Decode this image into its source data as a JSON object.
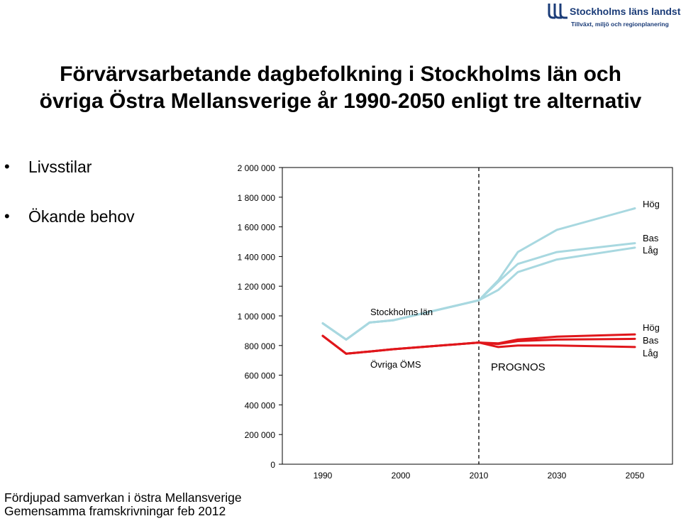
{
  "logo": {
    "name": "Stockholms läns landsting",
    "tagline": "Tillväxt, miljö och regionplanering"
  },
  "title_line1": "Förvärvsarbetande dagbefolkning i Stockholms län och",
  "title_line2": "övriga Östra Mellansverige år 1990-2050 enligt tre alternativ",
  "bullets": [
    "Livsstilar",
    "Ökande behov"
  ],
  "footer_line1": "Fördjupad samverkan i östra Mellansverige",
  "footer_line2": "Gemensamma framskrivningar feb 2012",
  "colors": {
    "stockholm": "#a8d8e0",
    "oms": "#e0161b",
    "logo": "#1b3c78"
  },
  "chart_data": {
    "type": "line",
    "ylim": [
      0,
      2000000
    ],
    "yticks": [
      0,
      200000,
      400000,
      600000,
      800000,
      1000000,
      1200000,
      1400000,
      1600000,
      1800000,
      2000000
    ],
    "ytick_labels": [
      "0",
      "200 000",
      "400 000",
      "600 000",
      "800 000",
      "1 000 000",
      "1 200 000",
      "1 400 000",
      "1 600 000",
      "1 800 000",
      "2 000 000"
    ],
    "x": [
      1990,
      1993,
      1996,
      1999,
      2002,
      2006,
      2010,
      2015,
      2020,
      2025,
      2030,
      2040,
      2050
    ],
    "x_tick_values": [
      1990,
      2000,
      2010,
      2030,
      2050
    ],
    "x_tick_labels": [
      "1990",
      "2000",
      "2010",
      "2030",
      "2050"
    ],
    "forecast_start": 2010,
    "grid": false,
    "annotations": {
      "stockholm": "Stockholms län",
      "oms": "Övriga ÖMS",
      "prognos": "PROGNOS",
      "high": "Hög",
      "base": "Bas",
      "low": "Låg"
    },
    "series": [
      {
        "group": "stockholm",
        "scenario": "Hög",
        "values": [
          950000,
          840000,
          955000,
          970000,
          null,
          null,
          1105000,
          1240000,
          1430000,
          null,
          1580000,
          null,
          1725000
        ]
      },
      {
        "group": "stockholm",
        "scenario": "Bas",
        "values": [
          950000,
          840000,
          955000,
          970000,
          null,
          null,
          1105000,
          1230000,
          1350000,
          null,
          1430000,
          null,
          1490000
        ]
      },
      {
        "group": "stockholm",
        "scenario": "Låg",
        "values": [
          950000,
          840000,
          955000,
          970000,
          null,
          null,
          1105000,
          1175000,
          1295000,
          null,
          1380000,
          null,
          1460000
        ]
      },
      {
        "group": "oms",
        "scenario": "Hög",
        "values": [
          865000,
          745000,
          760000,
          775000,
          null,
          null,
          820000,
          815000,
          840000,
          null,
          860000,
          null,
          875000
        ]
      },
      {
        "group": "oms",
        "scenario": "Bas",
        "values": [
          865000,
          745000,
          760000,
          775000,
          null,
          null,
          820000,
          810000,
          830000,
          null,
          840000,
          null,
          845000
        ]
      },
      {
        "group": "oms",
        "scenario": "Låg",
        "values": [
          865000,
          745000,
          760000,
          775000,
          null,
          null,
          820000,
          790000,
          800000,
          null,
          800000,
          null,
          790000
        ]
      }
    ]
  }
}
